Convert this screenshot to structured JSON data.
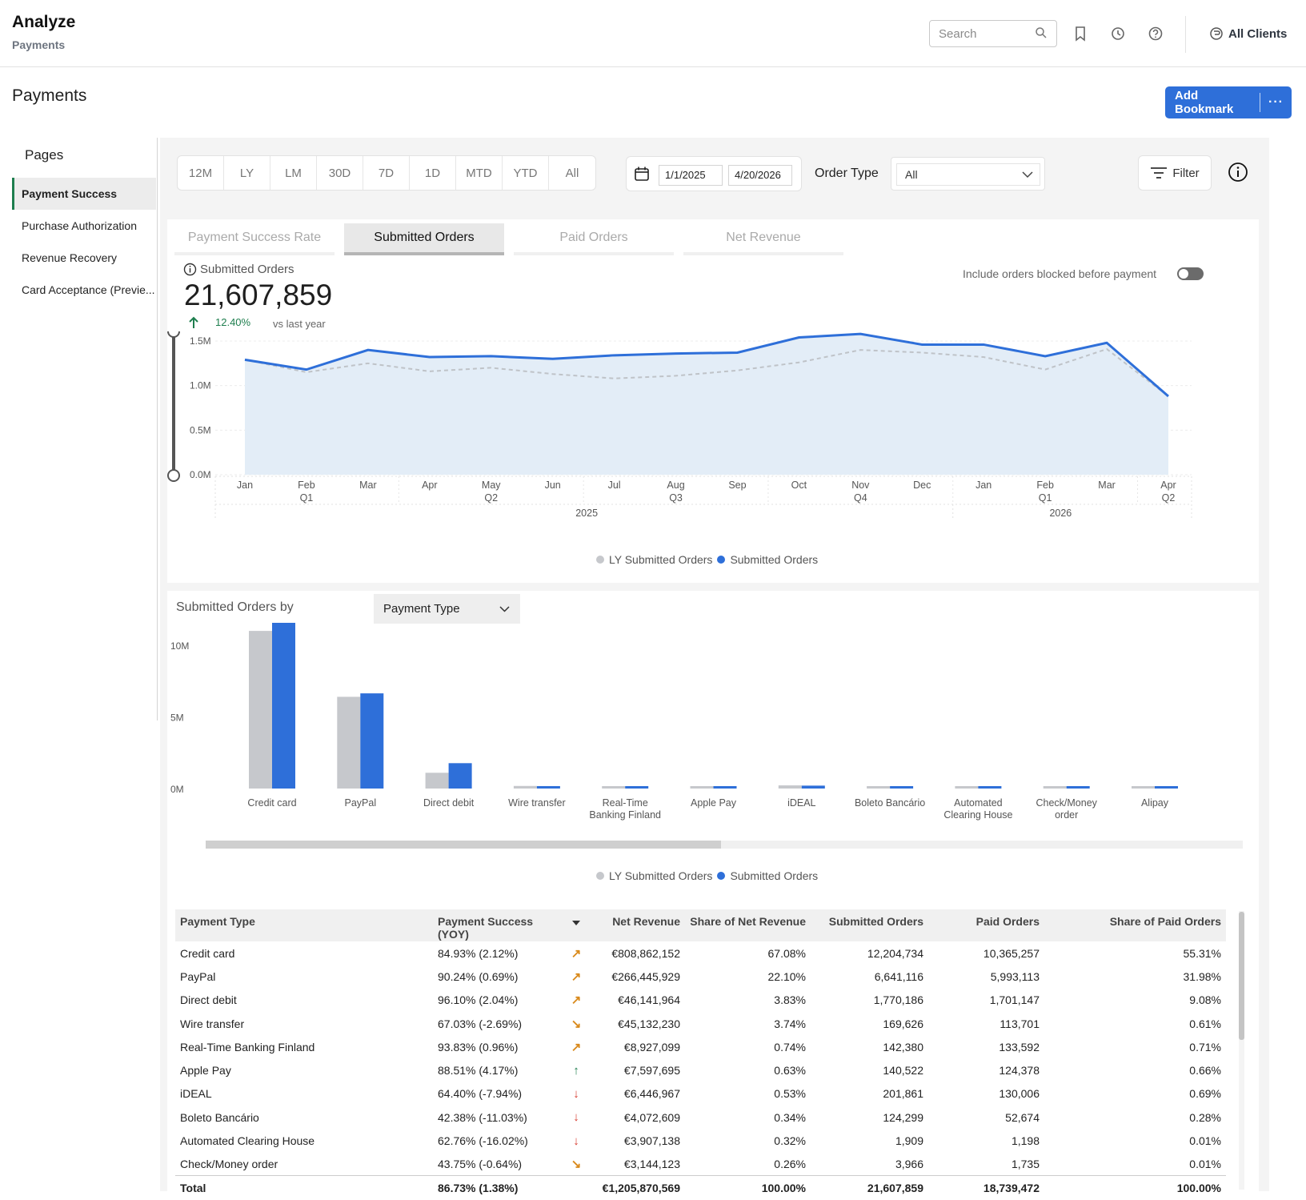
{
  "header": {
    "app_title": "Analyze",
    "app_subtitle": "Payments",
    "search_placeholder": "Search",
    "icons": [
      "search-icon",
      "bookmark-icon",
      "history-icon",
      "help-icon",
      "clients-icon"
    ],
    "clients_label": "All Clients"
  },
  "page": {
    "title": "Payments",
    "add_bookmark_label": "Add Bookmark",
    "more_label": "···"
  },
  "sidebar": {
    "title": "Pages",
    "items": [
      {
        "label": "Payment Success",
        "active": true
      },
      {
        "label": "Purchase Authorization"
      },
      {
        "label": "Revenue Recovery"
      },
      {
        "label": "Card Acceptance (Previe..."
      }
    ]
  },
  "filters": {
    "periods": [
      "12M",
      "LY",
      "LM",
      "30D",
      "7D",
      "1D",
      "MTD",
      "YTD",
      "All"
    ],
    "start_date": "1/1/2025",
    "end_date": "4/20/2026",
    "order_type_label": "Order Type",
    "order_type_value": "All",
    "filter_label": "Filter"
  },
  "metrics_tabs": [
    "Payment Success Rate",
    "Submitted Orders",
    "Paid Orders",
    "Net Revenue"
  ],
  "active_tab": 1,
  "kpi": {
    "label": "Submitted Orders",
    "value": "21,607,859",
    "delta": "12.40%",
    "vs": "vs last year",
    "include_label": "Include orders blocked before payment"
  },
  "colors": {
    "accent": "#2e6fd9",
    "ly": "#c6c8cc",
    "area": "#e3edf7",
    "positive": "#1e7e4e"
  },
  "chart_data": [
    {
      "type": "area",
      "months": [
        "Jan",
        "Feb",
        "Mar",
        "Apr",
        "May",
        "Jun",
        "Jul",
        "Aug",
        "Sep",
        "Oct",
        "Nov",
        "Dec",
        "Jan",
        "Feb",
        "Mar",
        "Apr"
      ],
      "quarters": [
        "",
        "Q1",
        "",
        "",
        "Q2",
        "",
        "",
        "Q3",
        "",
        "",
        "Q4",
        "",
        "",
        "Q1",
        "",
        "Q2"
      ],
      "years": [
        "2025",
        "2026"
      ],
      "series": [
        {
          "name": "LY Submitted Orders",
          "values": [
            1290000,
            1150000,
            1250000,
            1160000,
            1200000,
            1130000,
            1080000,
            1110000,
            1170000,
            1260000,
            1400000,
            1370000,
            1320000,
            1180000,
            1410000,
            880000
          ]
        },
        {
          "name": "Submitted Orders",
          "values": [
            1290000,
            1180000,
            1400000,
            1320000,
            1330000,
            1300000,
            1340000,
            1360000,
            1370000,
            1540000,
            1580000,
            1460000,
            1460000,
            1330000,
            1480000,
            880000
          ]
        }
      ],
      "yticks": [
        "0.0M",
        "0.5M",
        "1.0M",
        "1.5M"
      ],
      "ylim": [
        0,
        1500000
      ]
    },
    {
      "type": "bar",
      "categories": [
        "Credit card",
        "PayPal",
        "Direct debit",
        "Wire transfer",
        "Real-Time Banking Finland",
        "Apple Pay",
        "iDEAL",
        "Boleto Bancário",
        "Automated Clearing House",
        "Check/Money order",
        "Alipay"
      ],
      "category_lines": [
        [
          "Credit card"
        ],
        [
          "PayPal"
        ],
        [
          "Direct debit"
        ],
        [
          "Wire transfer"
        ],
        [
          "Real-Time",
          "Banking Finland"
        ],
        [
          "Apple Pay"
        ],
        [
          "iDEAL"
        ],
        [
          "Boleto Bancário"
        ],
        [
          "Automated",
          "Clearing House"
        ],
        [
          "Check/Money",
          "order"
        ],
        [
          "Alipay"
        ]
      ],
      "series": [
        {
          "name": "LY Submitted Orders",
          "values": [
            11000000,
            6400000,
            1100000,
            180000,
            140000,
            100000,
            220000,
            120000,
            40000,
            20000,
            80000
          ]
        },
        {
          "name": "Submitted Orders",
          "values": [
            12204734,
            6641116,
            1770186,
            169626,
            142380,
            140522,
            201861,
            124299,
            1909,
            3966,
            100000
          ]
        }
      ],
      "yticks": [
        "0M",
        "5M",
        "10M"
      ],
      "ylim": [
        0,
        10000000
      ]
    }
  ],
  "breakdown": {
    "label": "Submitted Orders by",
    "dimension": "Payment Type"
  },
  "table": {
    "columns": [
      "Payment Type",
      "Payment Success (YOY)",
      "",
      "Net Revenue",
      "Share of Net Revenue",
      "Submitted Orders",
      "Paid Orders",
      "Share of Paid Orders"
    ],
    "rows": [
      {
        "type": "Credit card",
        "success": "84.93% (2.12%)",
        "trend": "up-right",
        "revenue": "€808,862,152",
        "share_rev": "67.08%",
        "submitted": "12,204,734",
        "paid": "10,365,257",
        "share_paid": "55.31%"
      },
      {
        "type": "PayPal",
        "success": "90.24% (0.69%)",
        "trend": "up-right",
        "revenue": "€266,445,929",
        "share_rev": "22.10%",
        "submitted": "6,641,116",
        "paid": "5,993,113",
        "share_paid": "31.98%"
      },
      {
        "type": "Direct debit",
        "success": "96.10% (2.04%)",
        "trend": "up-right",
        "revenue": "€46,141,964",
        "share_rev": "3.83%",
        "submitted": "1,770,186",
        "paid": "1,701,147",
        "share_paid": "9.08%"
      },
      {
        "type": "Wire transfer",
        "success": "67.03% (-2.69%)",
        "trend": "down-right",
        "revenue": "€45,132,230",
        "share_rev": "3.74%",
        "submitted": "169,626",
        "paid": "113,701",
        "share_paid": "0.61%"
      },
      {
        "type": "Real-Time Banking Finland",
        "success": "93.83% (0.96%)",
        "trend": "up-right",
        "revenue": "€8,927,099",
        "share_rev": "0.74%",
        "submitted": "142,380",
        "paid": "133,592",
        "share_paid": "0.71%"
      },
      {
        "type": "Apple Pay",
        "success": "88.51% (4.17%)",
        "trend": "up",
        "revenue": "€7,597,695",
        "share_rev": "0.63%",
        "submitted": "140,522",
        "paid": "124,378",
        "share_paid": "0.66%"
      },
      {
        "type": "iDEAL",
        "success": "64.40% (-7.94%)",
        "trend": "down",
        "revenue": "€6,446,967",
        "share_rev": "0.53%",
        "submitted": "201,861",
        "paid": "130,006",
        "share_paid": "0.69%"
      },
      {
        "type": "Boleto Bancário",
        "success": "42.38% (-11.03%)",
        "trend": "down",
        "revenue": "€4,072,609",
        "share_rev": "0.34%",
        "submitted": "124,299",
        "paid": "52,674",
        "share_paid": "0.28%"
      },
      {
        "type": "Automated Clearing House",
        "success": "62.76% (-16.02%)",
        "trend": "down",
        "revenue": "€3,907,138",
        "share_rev": "0.32%",
        "submitted": "1,909",
        "paid": "1,198",
        "share_paid": "0.01%"
      },
      {
        "type": "Check/Money order",
        "success": "43.75% (-0.64%)",
        "trend": "down-right",
        "revenue": "€3,144,123",
        "share_rev": "0.26%",
        "submitted": "3,966",
        "paid": "1,735",
        "share_paid": "0.01%"
      }
    ],
    "total": {
      "type": "Total",
      "success": "86.73% (1.38%)",
      "revenue": "€1,205,870,569",
      "share_rev": "100.00%",
      "submitted": "21,607,859",
      "paid": "18,739,472",
      "share_paid": "100.00%"
    }
  }
}
